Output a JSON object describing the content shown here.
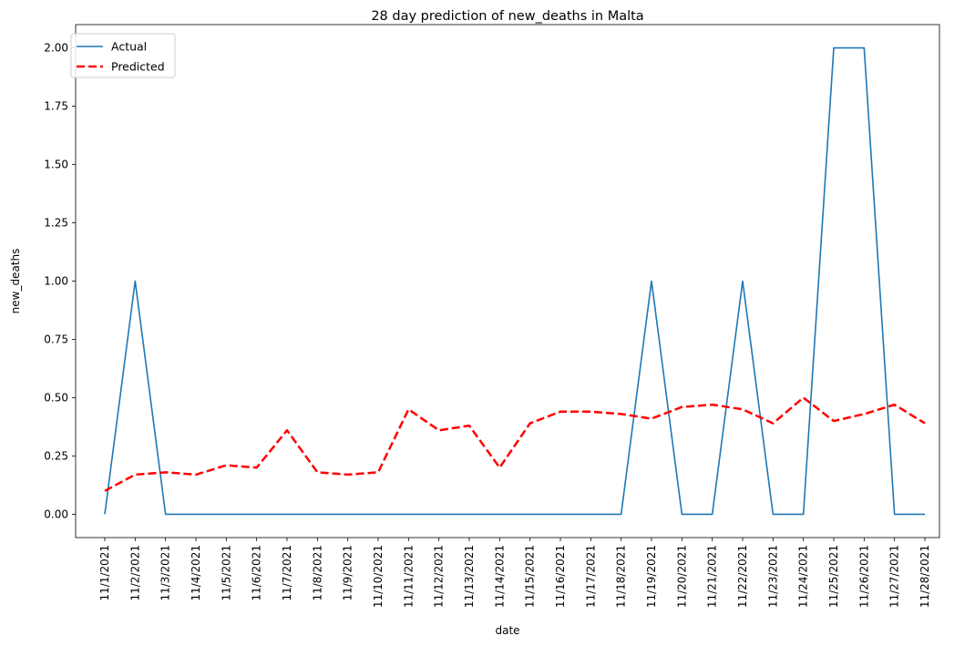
{
  "chart_data": {
    "type": "line",
    "title": "28 day prediction of new_deaths in Malta",
    "xlabel": "date",
    "ylabel": "new_deaths",
    "categories": [
      "11/1/2021",
      "11/2/2021",
      "11/3/2021",
      "11/4/2021",
      "11/5/2021",
      "11/6/2021",
      "11/7/2021",
      "11/8/2021",
      "11/9/2021",
      "11/10/2021",
      "11/11/2021",
      "11/12/2021",
      "11/13/2021",
      "11/14/2021",
      "11/15/2021",
      "11/16/2021",
      "11/17/2021",
      "11/18/2021",
      "11/19/2021",
      "11/20/2021",
      "11/21/2021",
      "11/22/2021",
      "11/23/2021",
      "11/24/2021",
      "11/25/2021",
      "11/26/2021",
      "11/27/2021",
      "11/28/2021"
    ],
    "yticks": [
      "0.00",
      "0.25",
      "0.50",
      "0.75",
      "1.00",
      "1.25",
      "1.50",
      "1.75",
      "2.00"
    ],
    "ylim": [
      -0.1,
      2.1
    ],
    "legend_position": "top-left",
    "grid": false,
    "series": [
      {
        "name": "Actual",
        "color": "#1f77b4",
        "style": "solid",
        "values": [
          0,
          1,
          0,
          0,
          0,
          0,
          0,
          0,
          0,
          0,
          0,
          0,
          0,
          0,
          0,
          0,
          0,
          0,
          1,
          0,
          0,
          1,
          0,
          0,
          2,
          2,
          0,
          0
        ]
      },
      {
        "name": "Predicted",
        "color": "#ff0000",
        "style": "dashed",
        "values": [
          0.1,
          0.17,
          0.18,
          0.17,
          0.21,
          0.2,
          0.36,
          0.18,
          0.17,
          0.18,
          0.45,
          0.36,
          0.38,
          0.2,
          0.39,
          0.44,
          0.44,
          0.43,
          0.41,
          0.46,
          0.47,
          0.45,
          0.39,
          0.5,
          0.4,
          0.43,
          0.47,
          0.39
        ]
      }
    ]
  }
}
